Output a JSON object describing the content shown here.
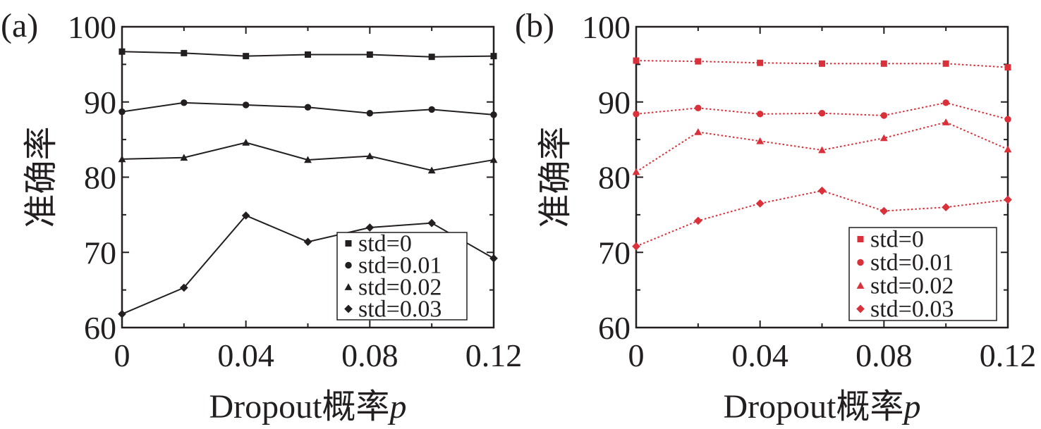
{
  "chart_data": [
    {
      "type": "line",
      "panel_label": "(a)",
      "xlabel": "Dropout概率",
      "xlabel_var": "p",
      "ylabel": "准确率",
      "xlim": [
        0,
        0.12
      ],
      "ylim": [
        60,
        100
      ],
      "x_ticks": [
        "0",
        "0.04",
        "0.08",
        "0.12"
      ],
      "y_ticks": [
        "60",
        "70",
        "80",
        "90",
        "100"
      ],
      "x": [
        0,
        0.02,
        0.04,
        0.06,
        0.08,
        0.1,
        0.12
      ],
      "series": [
        {
          "name": "std=0",
          "marker": "square",
          "values": [
            96.7,
            96.5,
            96.1,
            96.3,
            96.3,
            96.0,
            96.1
          ]
        },
        {
          "name": "std=0.01",
          "marker": "circle",
          "values": [
            88.7,
            89.9,
            89.6,
            89.3,
            88.5,
            89.0,
            88.3
          ]
        },
        {
          "name": "std=0.02",
          "marker": "triangle",
          "values": [
            82.4,
            82.6,
            84.6,
            82.3,
            82.8,
            80.9,
            82.3
          ]
        },
        {
          "name": "std=0.03",
          "marker": "diamond",
          "values": [
            61.8,
            65.3,
            74.9,
            71.4,
            73.3,
            73.9,
            69.2
          ]
        }
      ],
      "color": "#231f20",
      "line_style": "solid",
      "grid": false,
      "legend_position": "bottom-right"
    },
    {
      "type": "line",
      "panel_label": "(b)",
      "xlabel": "Dropout概率",
      "xlabel_var": "p",
      "ylabel": "准确率",
      "xlim": [
        0,
        0.12
      ],
      "ylim": [
        60,
        100
      ],
      "x_ticks": [
        "0",
        "0.04",
        "0.08",
        "0.12"
      ],
      "y_ticks": [
        "60",
        "70",
        "80",
        "90",
        "100"
      ],
      "x": [
        0,
        0.02,
        0.04,
        0.06,
        0.08,
        0.1,
        0.12
      ],
      "series": [
        {
          "name": "std=0",
          "marker": "square",
          "values": [
            95.5,
            95.4,
            95.2,
            95.1,
            95.1,
            95.1,
            94.6
          ]
        },
        {
          "name": "std=0.01",
          "marker": "circle",
          "values": [
            88.4,
            89.2,
            88.4,
            88.5,
            88.2,
            89.9,
            87.7
          ]
        },
        {
          "name": "std=0.02",
          "marker": "triangle",
          "values": [
            80.7,
            86.0,
            84.8,
            83.6,
            85.2,
            87.3,
            83.7
          ]
        },
        {
          "name": "std=0.03",
          "marker": "diamond",
          "values": [
            70.8,
            74.2,
            76.5,
            78.2,
            75.5,
            76.0,
            77.0
          ]
        }
      ],
      "color": "#d9303a",
      "line_style": "dotted",
      "grid": false,
      "legend_position": "bottom-right"
    }
  ]
}
